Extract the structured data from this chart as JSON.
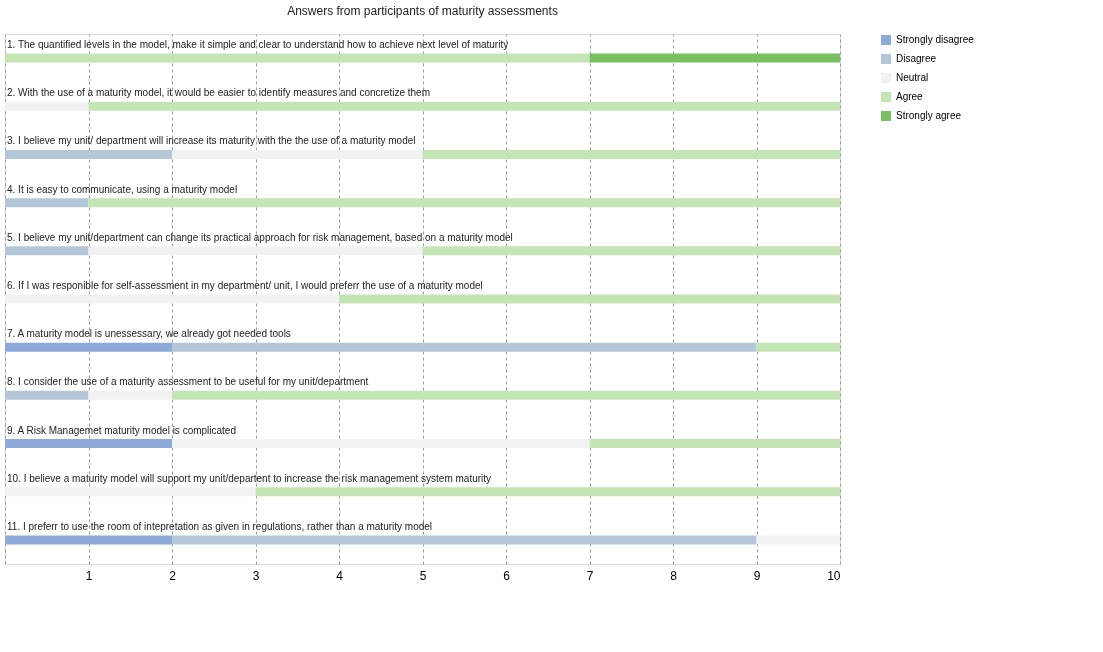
{
  "chart_data": {
    "type": "bar",
    "orientation": "horizontal",
    "stacked": true,
    "title": "Answers from participants of maturity assessments",
    "categories": [
      "1. The quantified levels in the model, make it simple and clear to understand how to achieve next level of maturity",
      "2.  With the use of a maturity model, it would be easier to identify measures and concretize them",
      "3. I believe my unit/ department will increase its maturity with the the use of a maturity model",
      "4.  It is easy to communicate, using a maturity model",
      "5. I believe my unit/department can change its practical approach for risk management, based on a maturity model",
      "6.  If I was responible for self-assessment in my department/ unit, I would preferr the use of a maturity model",
      "7. A maturity model is unessessary, we already got needed tools",
      "8.  I consider the use of a maturity assessment to be useful for my unit/department",
      "9.  A Risk Managemet maturity model is complicated",
      "10.  I believe a maturity model will support my unit/departent to increase the risk management system maturity",
      "11. I preferr to use the room of intepretation as given in regulations, rather than a maturity model"
    ],
    "series": [
      {
        "name": "Strongly disagree",
        "color": "#8eaadb",
        "values": [
          0,
          0,
          0,
          0,
          0,
          0,
          2,
          0,
          2,
          0,
          2
        ]
      },
      {
        "name": "Disagree",
        "color": "#b4c7d9",
        "values": [
          0,
          0,
          2,
          1,
          1,
          0,
          7,
          1,
          0,
          0,
          7
        ]
      },
      {
        "name": "Neutral",
        "color": "#f2f2f2",
        "values": [
          0,
          1,
          3,
          0,
          4,
          4,
          0,
          1,
          5,
          3,
          1
        ]
      },
      {
        "name": "Agree",
        "color": "#c3e6b4",
        "values": [
          7,
          9,
          5,
          9,
          5,
          6,
          1,
          8,
          3,
          7,
          0
        ]
      },
      {
        "name": "Strongly agree",
        "color": "#78c060",
        "values": [
          3,
          0,
          0,
          0,
          0,
          0,
          0,
          0,
          0,
          0,
          0
        ]
      }
    ],
    "xlim": [
      0,
      10
    ],
    "xticks": [
      {
        "value": 0,
        "label": null
      },
      1,
      2,
      3,
      4,
      5,
      6,
      7,
      8,
      9,
      10
    ],
    "grid": "x",
    "legend": "right"
  }
}
